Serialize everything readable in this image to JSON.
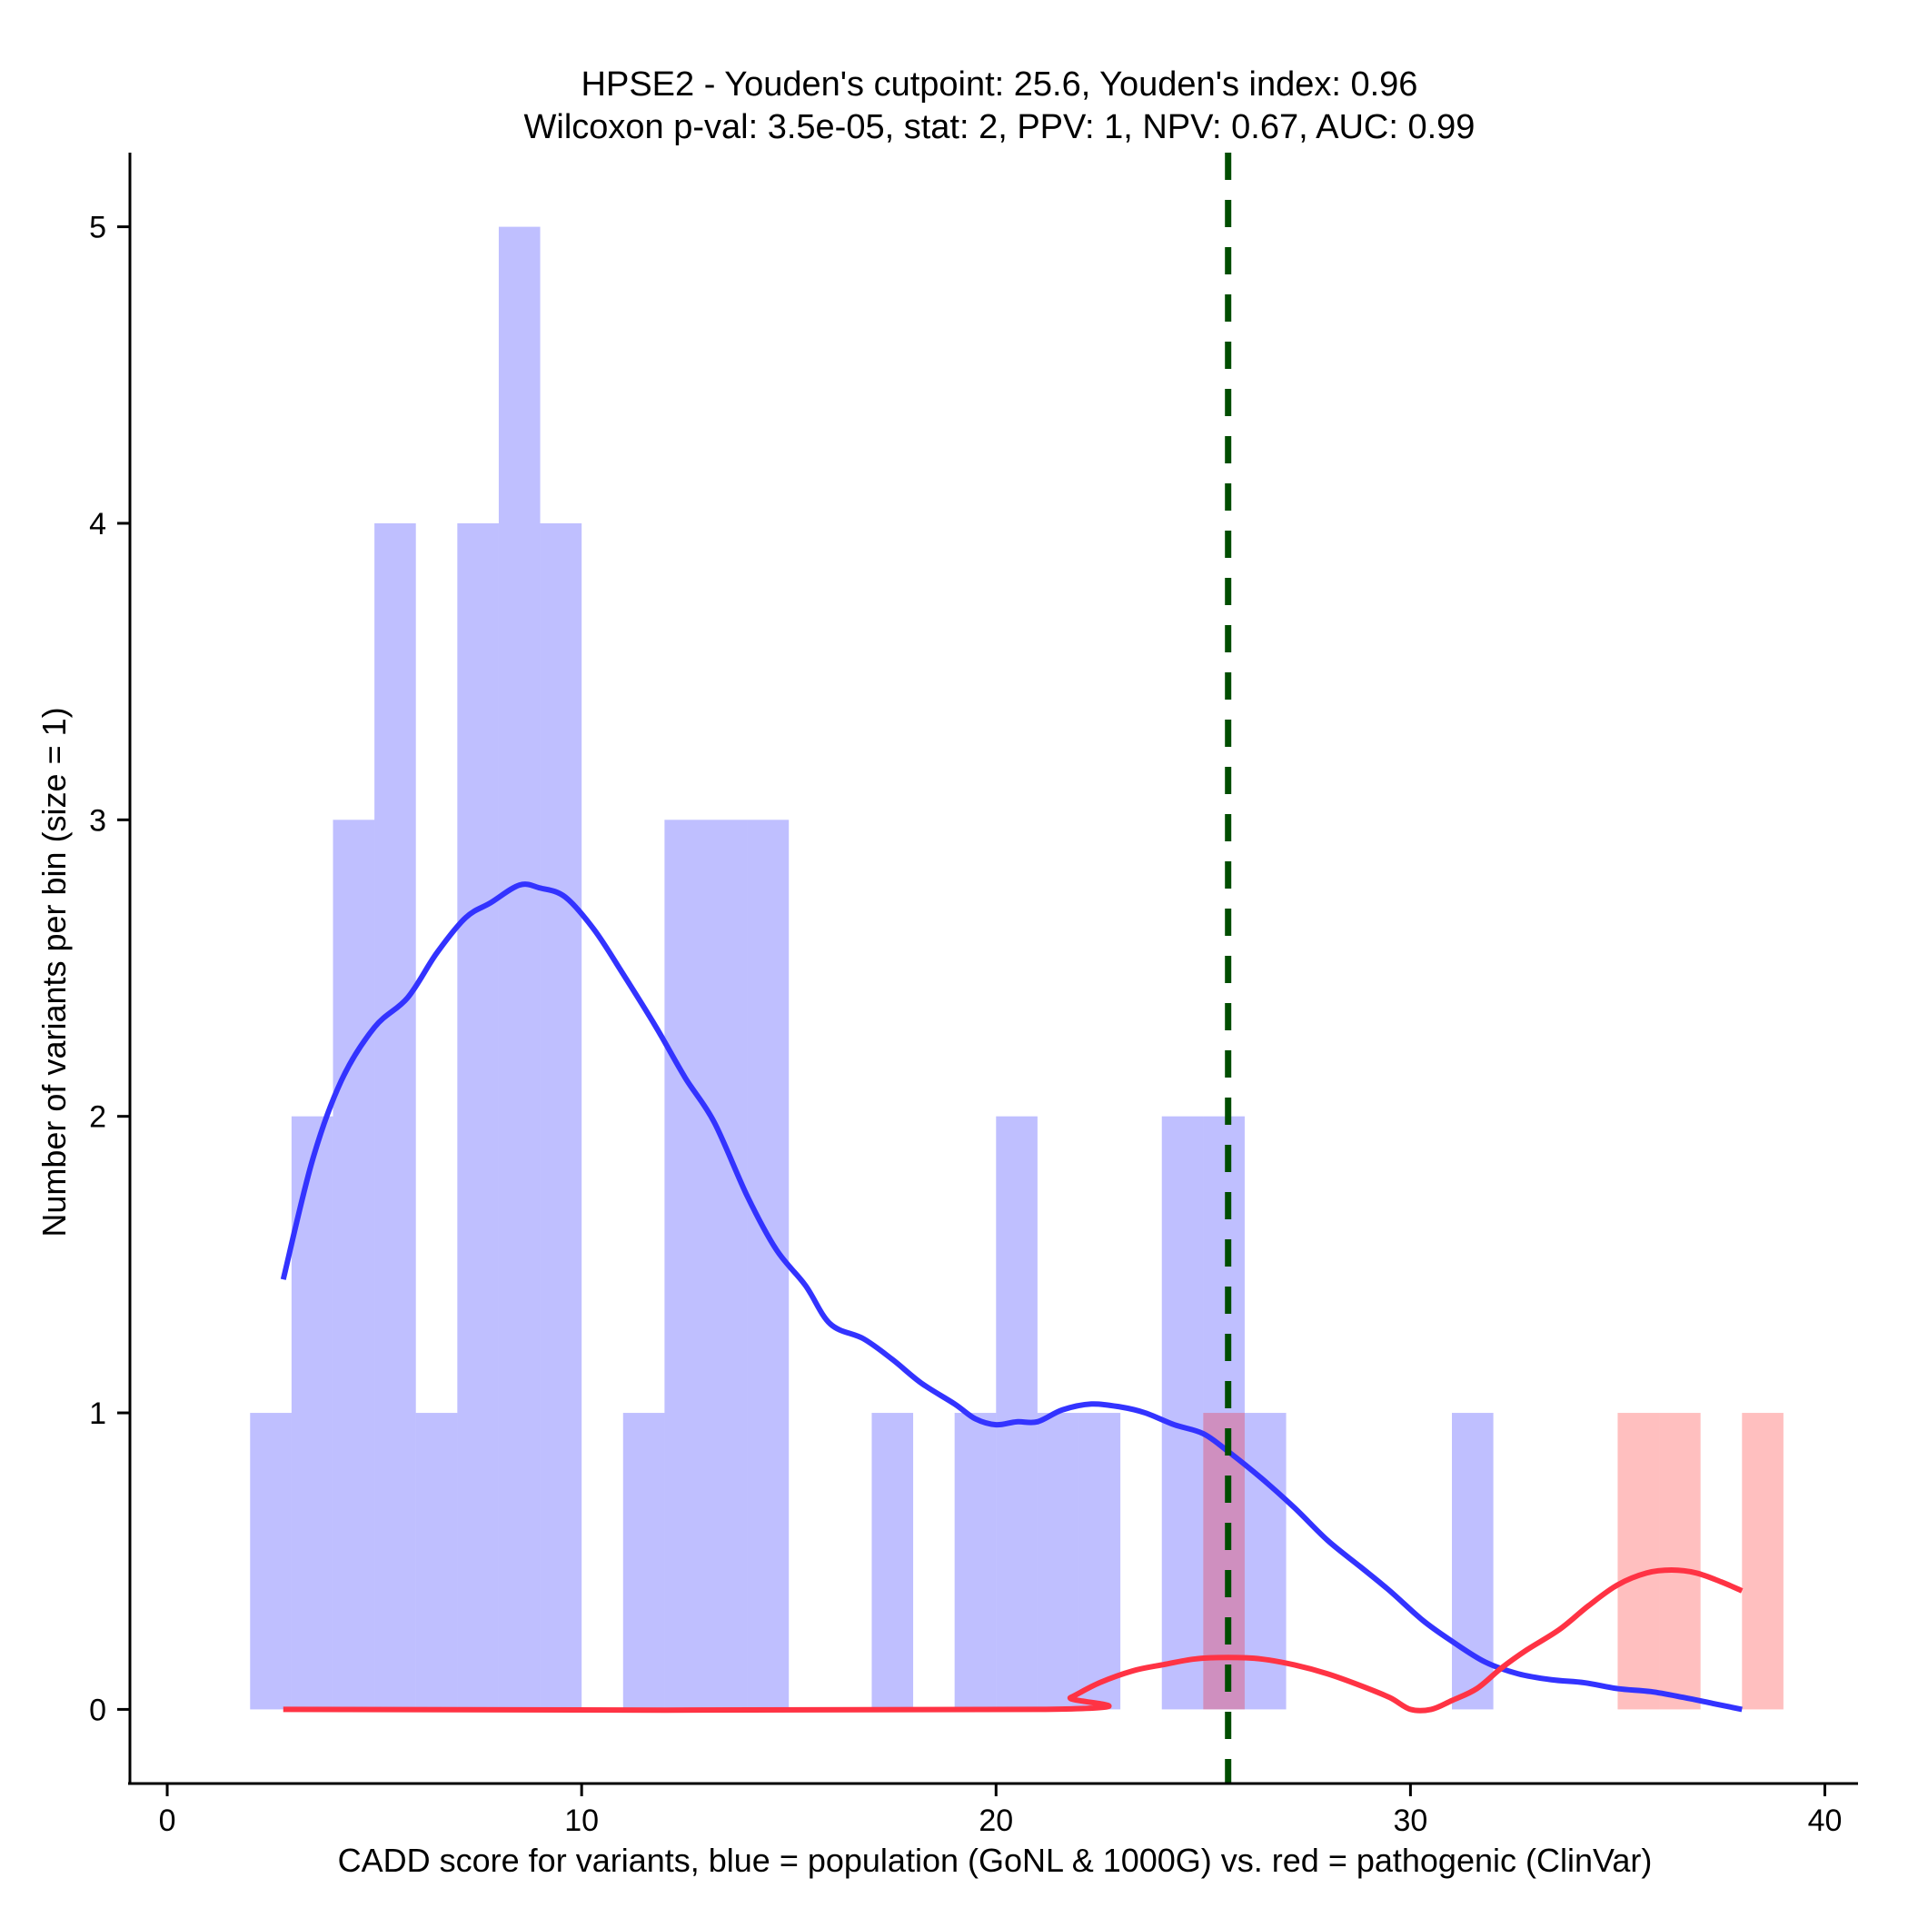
{
  "chart_data": {
    "type": "histogram",
    "title": "HPSE2 - Youden's cutpoint: 25.6, Youden's index: 0.96",
    "subtitle": "Wilcoxon p-val: 3.5e-05, stat: 2, PPV: 1, NPV: 0.67, AUC: 0.99",
    "xlabel": "CADD score for variants, blue = population (GoNL & 1000G) vs. red = pathogenic (ClinVar)",
    "ylabel": "Number of variants per bin (size = 1)",
    "xlim": [
      -0.9,
      40.8
    ],
    "ylim": [
      -0.25,
      5.25
    ],
    "xticks": [
      0,
      10,
      20,
      30,
      40
    ],
    "yticks": [
      0,
      1,
      2,
      3,
      4,
      5
    ],
    "bin_width": 1,
    "cutpoint": 25.6,
    "series": [
      {
        "name": "population (GoNL & 1000G)",
        "color": "#0000ff",
        "fill_opacity": 0.25,
        "bins": [
          {
            "start": 2,
            "count": 1
          },
          {
            "start": 3,
            "count": 2
          },
          {
            "start": 4,
            "count": 3
          },
          {
            "start": 5,
            "count": 4
          },
          {
            "start": 6,
            "count": 1
          },
          {
            "start": 7,
            "count": 4
          },
          {
            "start": 8,
            "count": 5
          },
          {
            "start": 9,
            "count": 4
          },
          {
            "start": 11,
            "count": 1
          },
          {
            "start": 12,
            "count": 3
          },
          {
            "start": 13,
            "count": 3
          },
          {
            "start": 14,
            "count": 3
          },
          {
            "start": 17,
            "count": 1
          },
          {
            "start": 19,
            "count": 1
          },
          {
            "start": 20,
            "count": 2
          },
          {
            "start": 21,
            "count": 1
          },
          {
            "start": 22,
            "count": 1
          },
          {
            "start": 24,
            "count": 2
          },
          {
            "start": 25,
            "count": 2
          },
          {
            "start": 26,
            "count": 1
          },
          {
            "start": 31,
            "count": 1
          }
        ],
        "density": [
          [
            2.8,
            1.45
          ],
          [
            3.5,
            1.85
          ],
          [
            4.2,
            2.12
          ],
          [
            5.0,
            2.3
          ],
          [
            5.8,
            2.4
          ],
          [
            6.5,
            2.55
          ],
          [
            7.2,
            2.67
          ],
          [
            7.8,
            2.72
          ],
          [
            8.5,
            2.78
          ],
          [
            9.0,
            2.77
          ],
          [
            9.6,
            2.74
          ],
          [
            10.3,
            2.63
          ],
          [
            11.0,
            2.48
          ],
          [
            11.8,
            2.3
          ],
          [
            12.5,
            2.13
          ],
          [
            13.2,
            1.98
          ],
          [
            14.0,
            1.73
          ],
          [
            14.7,
            1.55
          ],
          [
            15.4,
            1.43
          ],
          [
            16.0,
            1.3
          ],
          [
            16.8,
            1.25
          ],
          [
            17.5,
            1.18
          ],
          [
            18.2,
            1.1
          ],
          [
            19.0,
            1.03
          ],
          [
            19.5,
            0.98
          ],
          [
            20.0,
            0.96
          ],
          [
            20.5,
            0.97
          ],
          [
            21.0,
            0.97
          ],
          [
            21.6,
            1.01
          ],
          [
            22.3,
            1.03
          ],
          [
            23.0,
            1.02
          ],
          [
            23.6,
            1.0
          ],
          [
            24.3,
            0.96
          ],
          [
            25.0,
            0.93
          ],
          [
            25.6,
            0.87
          ],
          [
            26.4,
            0.78
          ],
          [
            27.2,
            0.68
          ],
          [
            28.0,
            0.57
          ],
          [
            28.8,
            0.48
          ],
          [
            29.5,
            0.4
          ],
          [
            30.3,
            0.3
          ],
          [
            31.0,
            0.23
          ],
          [
            31.8,
            0.16
          ],
          [
            32.6,
            0.12
          ],
          [
            33.4,
            0.1
          ],
          [
            34.2,
            0.09
          ],
          [
            35.0,
            0.07
          ],
          [
            35.8,
            0.06
          ],
          [
            36.6,
            0.04
          ],
          [
            37.3,
            0.02
          ],
          [
            38.0,
            0.0
          ]
        ]
      },
      {
        "name": "pathogenic (ClinVar)",
        "color": "#ff0000",
        "fill_opacity": 0.25,
        "bins": [
          {
            "start": 25,
            "count": 1
          },
          {
            "start": 35,
            "count": 1
          },
          {
            "start": 36,
            "count": 1
          },
          {
            "start": 38,
            "count": 1
          }
        ],
        "density": [
          [
            2.8,
            0.0
          ],
          [
            21.2,
            0.0
          ],
          [
            21.8,
            0.04
          ],
          [
            22.5,
            0.09
          ],
          [
            23.3,
            0.13
          ],
          [
            24.0,
            0.15
          ],
          [
            24.8,
            0.17
          ],
          [
            25.6,
            0.175
          ],
          [
            26.4,
            0.17
          ],
          [
            27.2,
            0.15
          ],
          [
            28.0,
            0.12
          ],
          [
            28.8,
            0.08
          ],
          [
            29.5,
            0.04
          ],
          [
            30.0,
            0.0
          ],
          [
            30.5,
            0.0
          ],
          [
            31.0,
            0.03
          ],
          [
            31.6,
            0.07
          ],
          [
            32.2,
            0.14
          ],
          [
            32.8,
            0.2
          ],
          [
            33.6,
            0.27
          ],
          [
            34.3,
            0.35
          ],
          [
            35.0,
            0.42
          ],
          [
            35.7,
            0.46
          ],
          [
            36.3,
            0.47
          ],
          [
            36.9,
            0.46
          ],
          [
            37.5,
            0.43
          ],
          [
            38.0,
            0.4
          ]
        ]
      }
    ],
    "cutpoint_color": "#004d00"
  }
}
